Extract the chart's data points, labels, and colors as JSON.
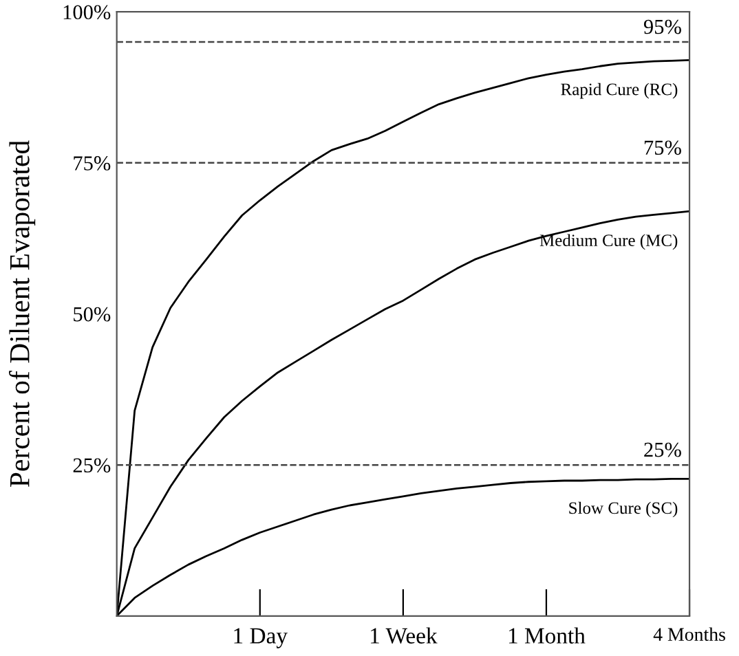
{
  "chart_data": {
    "type": "line",
    "ylabel": "Percent of Diluent Evaporated",
    "categories": [
      null,
      null,
      null,
      null,
      null,
      null,
      null,
      null,
      "1 Day",
      null,
      null,
      null,
      null,
      null,
      null,
      null,
      "1 Week",
      null,
      null,
      null,
      null,
      null,
      null,
      null,
      "1 Month",
      null,
      null,
      null,
      null,
      null,
      null,
      null,
      "4 Months"
    ],
    "ylim": [
      0,
      100
    ],
    "yticks": [
      {
        "value": 25,
        "label": "25%"
      },
      {
        "value": 50,
        "label": "50%"
      },
      {
        "value": 75,
        "label": "75%"
      },
      {
        "value": 100,
        "label": "100%"
      }
    ],
    "grid": false,
    "legend": false,
    "marker": "none",
    "line_style": "solid",
    "series": [
      {
        "name": "Rapid Cure (RC)",
        "color": "#000000",
        "values": [
          0,
          34,
          44.5,
          51,
          55.3,
          59,
          62.8,
          66.3,
          68.8,
          71.1,
          73.2,
          75.3,
          77.1,
          78.1,
          79,
          80.3,
          81.8,
          83.3,
          84.7,
          85.7,
          86.6,
          87.4,
          88.2,
          89,
          89.6,
          90.1,
          90.5,
          91,
          91.4,
          91.6,
          91.8,
          91.9,
          92
        ]
      },
      {
        "name": "Medium Cure (MC)",
        "color": "#000000",
        "values": [
          0,
          11.2,
          16.3,
          21.4,
          25.8,
          29.4,
          32.9,
          35.6,
          38,
          40.3,
          42.1,
          43.9,
          45.7,
          47.4,
          49.1,
          50.8,
          52.2,
          54,
          55.8,
          57.5,
          59,
          60.1,
          61.1,
          62.1,
          62.9,
          63.6,
          64.3,
          65,
          65.6,
          66.1,
          66.4,
          66.7,
          67
        ]
      },
      {
        "name": "Slow Cure (SC)",
        "color": "#000000",
        "values": [
          0,
          3,
          5,
          6.8,
          8.5,
          9.9,
          11.2,
          12.6,
          13.8,
          14.8,
          15.8,
          16.8,
          17.6,
          18.3,
          18.8,
          19.3,
          19.8,
          20.3,
          20.7,
          21.1,
          21.4,
          21.7,
          22,
          22.2,
          22.3,
          22.4,
          22.4,
          22.5,
          22.5,
          22.6,
          22.6,
          22.7,
          22.7
        ]
      }
    ],
    "ref_lines": [
      {
        "axis": "y",
        "value": 95,
        "label": "95%",
        "color": "#444444",
        "line_style": "dashed"
      },
      {
        "axis": "y",
        "value": 75,
        "label": "75%",
        "color": "#444444",
        "line_style": "dashed"
      },
      {
        "axis": "y",
        "value": 25,
        "label": "25%",
        "color": "#444444",
        "line_style": "dashed"
      }
    ]
  }
}
